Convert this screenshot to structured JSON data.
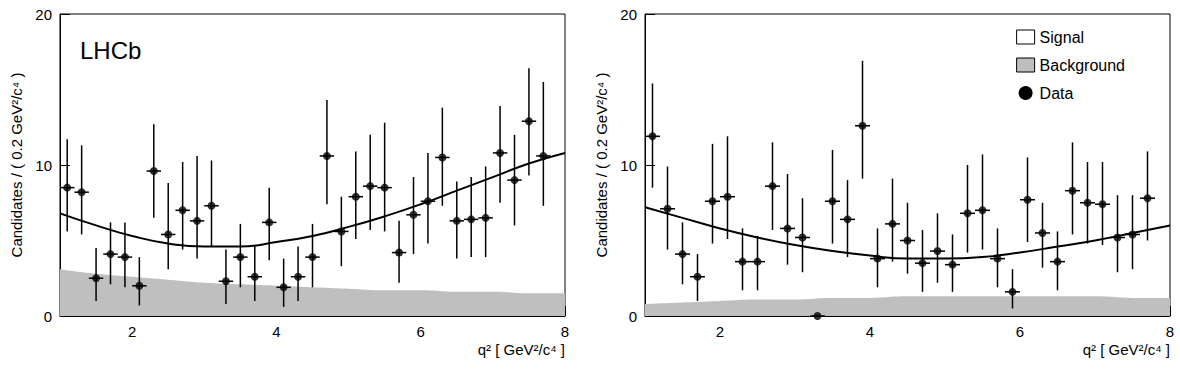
{
  "chart_data": [
    {
      "type": "scatter",
      "annotations": [
        "LHCb"
      ],
      "x_label": "q² [ GeV²/c⁴ ]",
      "y_label": "Candidates / ( 0.2 GeV²/c⁴ )",
      "xlim": [
        1,
        8
      ],
      "ylim": [
        0,
        20
      ],
      "xticks": [
        2,
        4,
        6,
        8
      ],
      "yticks": [
        0,
        10,
        20
      ],
      "series": [
        {
          "name": "Signal",
          "type": "line",
          "color": "#000000",
          "line_style": "solid",
          "x": [
            1,
            1.5,
            2,
            2.5,
            3,
            3.5,
            4,
            4.5,
            5,
            5.5,
            6,
            6.5,
            7,
            7.5,
            8
          ],
          "values": [
            6.8,
            6.0,
            5.3,
            4.8,
            4.6,
            4.6,
            4.9,
            5.3,
            5.9,
            6.6,
            7.4,
            8.3,
            9.2,
            10.1,
            10.8
          ]
        },
        {
          "name": "Background",
          "type": "area",
          "color": "#bfbfbf",
          "x": [
            1,
            1.5,
            2,
            2.5,
            3,
            3.5,
            4,
            4.5,
            5,
            5.5,
            6,
            6.5,
            7,
            7.5,
            8
          ],
          "values": [
            3.1,
            2.8,
            2.6,
            2.4,
            2.2,
            2.1,
            2.0,
            1.9,
            1.8,
            1.7,
            1.7,
            1.6,
            1.6,
            1.5,
            1.5
          ]
        },
        {
          "name": "Data",
          "type": "scatter",
          "color": "#000000",
          "marker": "circle",
          "x": [
            1.1,
            1.3,
            1.5,
            1.7,
            1.9,
            2.1,
            2.3,
            2.5,
            2.7,
            2.9,
            3.1,
            3.3,
            3.5,
            3.7,
            3.9,
            4.1,
            4.3,
            4.5,
            4.7,
            4.9,
            5.1,
            5.3,
            5.5,
            5.7,
            5.9,
            6.1,
            6.3,
            6.5,
            6.7,
            6.9,
            7.1,
            7.3,
            7.5,
            7.7
          ],
          "values": [
            8.5,
            8.2,
            2.5,
            4.1,
            3.9,
            2.0,
            9.6,
            5.4,
            7.0,
            6.3,
            7.3,
            2.3,
            3.9,
            2.6,
            6.2,
            1.9,
            2.6,
            3.9,
            10.6,
            5.6,
            7.9,
            8.6,
            8.5,
            4.2,
            6.7,
            7.6,
            10.5,
            6.3,
            6.4,
            6.5,
            10.8,
            9.0,
            12.9,
            10.6
          ],
          "x_err": 0.1,
          "y_err_low": [
            2.9,
            2.8,
            1.5,
            2.0,
            2.0,
            1.3,
            3.1,
            2.3,
            2.6,
            2.5,
            2.7,
            1.5,
            2.0,
            1.6,
            2.5,
            1.3,
            1.6,
            2.0,
            3.2,
            2.3,
            2.8,
            2.9,
            2.9,
            2.0,
            2.6,
            2.8,
            3.2,
            2.5,
            2.5,
            2.6,
            3.3,
            3.0,
            3.6,
            3.3
          ],
          "y_err_high": [
            3.2,
            3.1,
            2.0,
            2.1,
            2.3,
            1.9,
            3.1,
            3.4,
            3.2,
            4.3,
            3.0,
            2.1,
            2.2,
            2.1,
            2.3,
            1.9,
            2.0,
            2.2,
            3.7,
            2.3,
            3.0,
            3.4,
            4.3,
            2.1,
            2.5,
            3.2,
            3.3,
            2.6,
            2.8,
            3.4,
            3.1,
            3.0,
            3.5,
            4.9
          ]
        }
      ]
    },
    {
      "type": "scatter",
      "legend": "top right",
      "x_label": "q² [ GeV²/c⁴ ]",
      "y_label": "Candidates / ( 0.2 GeV²/c⁴ )",
      "xlim": [
        1,
        8
      ],
      "ylim": [
        0,
        20
      ],
      "xticks": [
        2,
        4,
        6,
        8
      ],
      "yticks": [
        0,
        10,
        20
      ],
      "series": [
        {
          "name": "Signal",
          "type": "line",
          "color": "#000000",
          "line_style": "solid",
          "x": [
            1,
            1.5,
            2,
            2.5,
            3,
            3.5,
            4,
            4.5,
            5,
            5.5,
            6,
            6.5,
            7,
            7.5,
            8
          ],
          "values": [
            7.2,
            6.5,
            5.8,
            5.2,
            4.7,
            4.3,
            4.0,
            3.8,
            3.8,
            3.9,
            4.2,
            4.6,
            5.0,
            5.5,
            6.0
          ]
        },
        {
          "name": "Background",
          "type": "area",
          "color": "#bfbfbf",
          "x": [
            1,
            1.5,
            2,
            2.5,
            3,
            3.5,
            4,
            4.5,
            5,
            5.5,
            6,
            6.5,
            7,
            7.5,
            8
          ],
          "values": [
            0.8,
            0.9,
            1.0,
            1.1,
            1.1,
            1.2,
            1.2,
            1.3,
            1.3,
            1.3,
            1.3,
            1.3,
            1.3,
            1.2,
            1.2
          ]
        },
        {
          "name": "Data",
          "type": "scatter",
          "color": "#000000",
          "marker": "circle",
          "x": [
            1.1,
            1.3,
            1.5,
            1.7,
            1.9,
            2.1,
            2.3,
            2.5,
            2.7,
            2.9,
            3.1,
            3.3,
            3.5,
            3.7,
            3.9,
            4.1,
            4.3,
            4.5,
            4.7,
            4.9,
            5.1,
            5.3,
            5.5,
            5.7,
            5.9,
            6.1,
            6.3,
            6.5,
            6.7,
            6.9,
            7.1,
            7.3,
            7.5,
            7.7
          ],
          "values": [
            11.9,
            7.1,
            4.1,
            2.6,
            7.6,
            7.9,
            3.6,
            3.6,
            8.6,
            5.8,
            5.2,
            0,
            7.6,
            6.4,
            12.6,
            3.8,
            6.1,
            5.0,
            3.5,
            4.3,
            3.4,
            6.8,
            7.0,
            3.8,
            1.6,
            7.7,
            5.5,
            3.6,
            8.3,
            7.5,
            7.4,
            5.2,
            5.4,
            7.8
          ],
          "x_err": 0.1,
          "y_err_low": [
            3.4,
            2.7,
            2.0,
            1.6,
            2.8,
            2.8,
            1.9,
            1.9,
            2.9,
            2.4,
            2.3,
            0,
            2.8,
            2.5,
            3.5,
            1.9,
            2.5,
            2.2,
            1.9,
            2.1,
            1.8,
            2.6,
            2.6,
            1.9,
            1.1,
            2.8,
            2.3,
            1.9,
            2.9,
            2.7,
            2.7,
            2.3,
            2.3,
            2.8
          ],
          "y_err_high": [
            3.5,
            2.8,
            2.1,
            1.5,
            3.8,
            4.0,
            2.2,
            1.7,
            2.9,
            3.6,
            2.6,
            0,
            3.4,
            2.6,
            4.3,
            2.0,
            3.0,
            2.5,
            2.2,
            2.5,
            2.0,
            3.2,
            3.7,
            2.0,
            1.5,
            2.8,
            2.0,
            2.0,
            3.2,
            2.7,
            2.8,
            2.8,
            2.6,
            3.1
          ]
        }
      ]
    }
  ]
}
